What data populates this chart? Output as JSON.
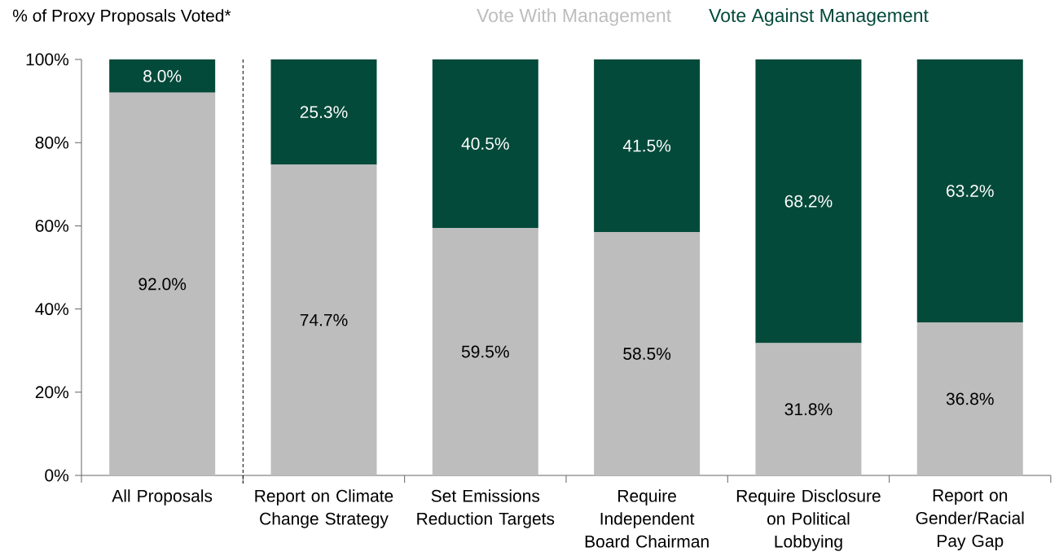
{
  "chart_data": {
    "type": "bar",
    "stacked": true,
    "ylabel": "% of Proxy Proposals Voted*",
    "categories": [
      "All Proposals",
      "Report on Climate Change Strategy",
      "Set Emissions Reduction Targets",
      "Require Independent Board Chairman",
      "Require Disclosure on Political Lobbying",
      "Report on Gender/Racial Pay Gap"
    ],
    "series": [
      {
        "name": "Vote With Management",
        "color": "#bcbdbc",
        "values": [
          92.0,
          74.7,
          59.5,
          58.5,
          31.8,
          36.8
        ],
        "value_labels": [
          "92.0%",
          "74.7%",
          "59.5%",
          "58.5%",
          "31.8%",
          "36.8%"
        ]
      },
      {
        "name": "Vote Against Management",
        "color": "#044a3a",
        "values": [
          8.0,
          25.3,
          40.5,
          41.5,
          68.2,
          63.2
        ],
        "value_labels": [
          "8.0%",
          "25.3%",
          "40.5%",
          "41.5%",
          "68.2%",
          "63.2%"
        ]
      }
    ],
    "ylim": [
      0,
      100
    ],
    "yticks": [
      {
        "value": 0,
        "label": "0%"
      },
      {
        "value": 20,
        "label": "20%"
      },
      {
        "value": 40,
        "label": "40%"
      },
      {
        "value": 60,
        "label": "60%"
      },
      {
        "value": 80,
        "label": "80%"
      },
      {
        "value": 100,
        "label": "100%"
      }
    ],
    "legend": "top"
  }
}
